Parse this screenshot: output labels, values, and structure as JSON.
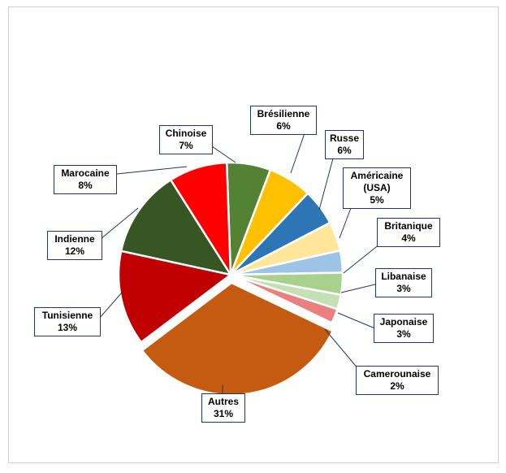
{
  "chart_data": {
    "type": "pie",
    "slices": [
      {
        "name": "Chinoise",
        "label": "7%",
        "value": 7,
        "color": "#ff0000"
      },
      {
        "name": "Brésilienne",
        "label": "6%",
        "value": 6,
        "color": "#548235"
      },
      {
        "name": "Russe",
        "label": "6%",
        "value": 6,
        "color": "#ffc000"
      },
      {
        "name": "Américaine (USA)",
        "name_lines": [
          "Américaine",
          "(USA)"
        ],
        "label": "5%",
        "value": 5,
        "color": "#2e75b6"
      },
      {
        "name": "Britanique",
        "label": "4%",
        "value": 4,
        "color": "#ffe699"
      },
      {
        "name": "Libanaise",
        "label": "3%",
        "value": 3,
        "color": "#9dc3e6"
      },
      {
        "name": "Japonaise",
        "label": "3%",
        "value": 3,
        "color": "#a9d18e"
      },
      {
        "name": "Camerounaise",
        "label": "2%",
        "value": 2,
        "color": "#c5e0b4"
      },
      {
        "name": "Autres",
        "label": "31%",
        "value": 31,
        "color": "#ed7d7d"
      },
      {
        "name": "Tunisienne",
        "label": "13%",
        "value": 13,
        "color": "#c55a11"
      },
      {
        "name": "Indienne",
        "label": "12%",
        "value": 12,
        "color": "#c00000"
      },
      {
        "name": "Marocaine",
        "label": "8%",
        "value": 8,
        "color": "#375623"
      }
    ],
    "exploded_slice": "Autres",
    "title": "",
    "legend": "none"
  }
}
